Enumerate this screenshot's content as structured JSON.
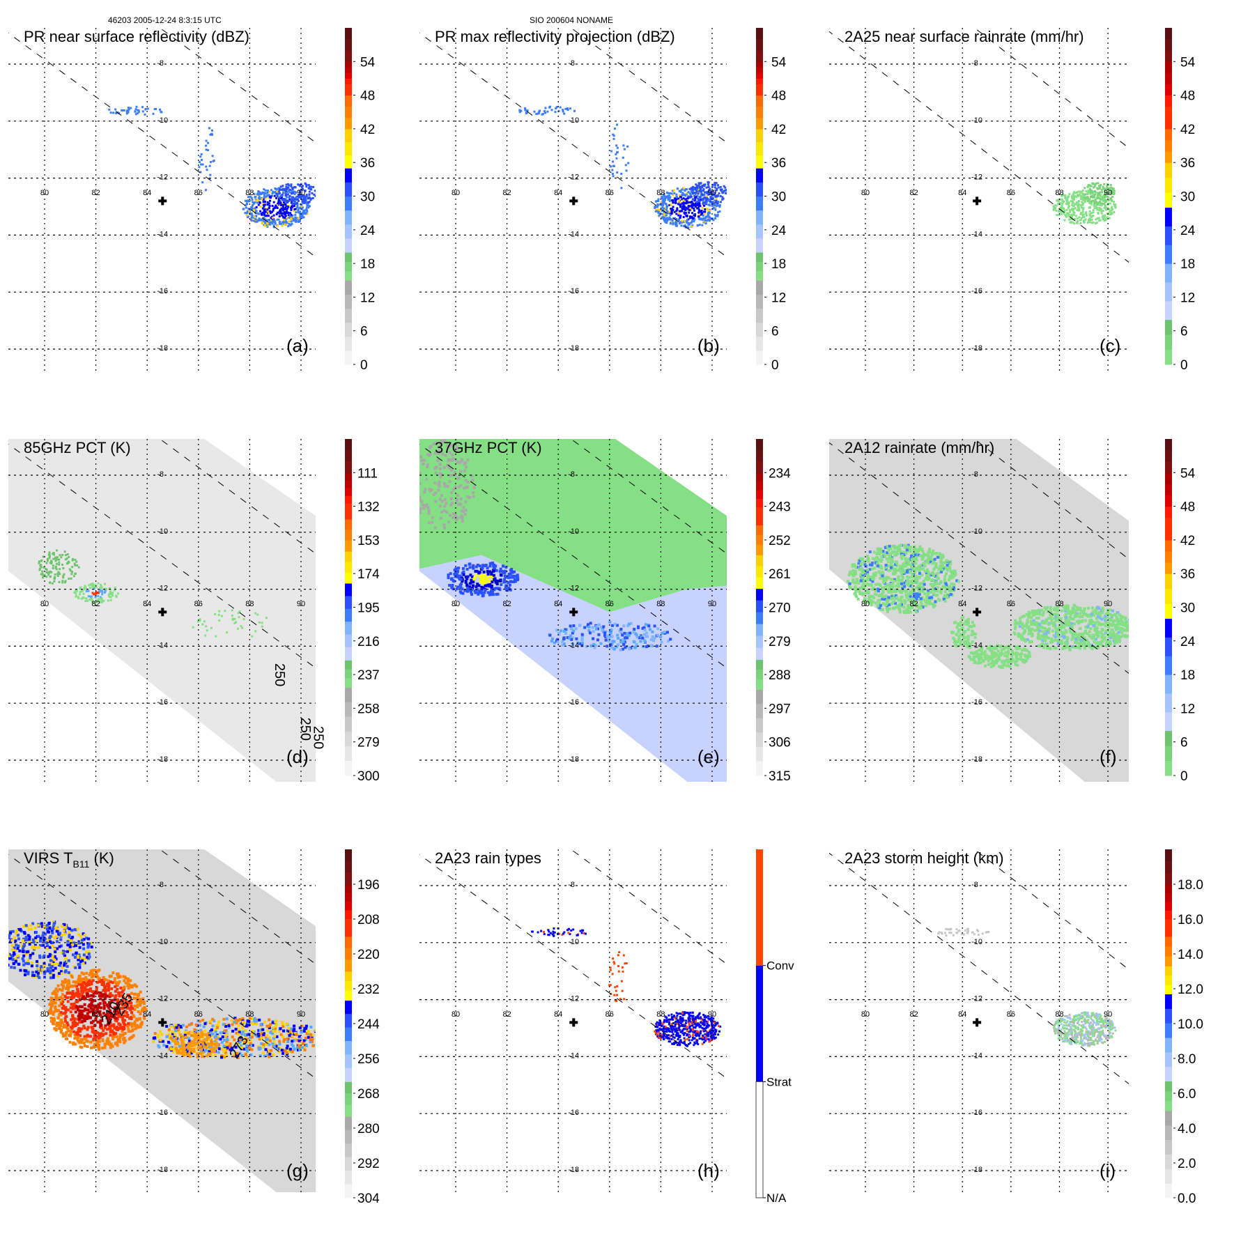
{
  "header": {
    "left": "46203 2005-12-24 8:3:15 UTC",
    "center": "SIO 200604 NONAME"
  },
  "chart_data": {
    "type": "heatmap",
    "map": {
      "lon_ticks": [
        80,
        82,
        84,
        86,
        88,
        90
      ],
      "lat_ticks": [
        -8,
        -10,
        -12,
        -14,
        -16,
        -18
      ],
      "lon_range": [
        78.5,
        91.3
      ],
      "lat_range": [
        -6.6,
        -19.3
      ],
      "storm_center": {
        "lon": 84.6,
        "lat": -12.8,
        "marker": "plus-icon"
      },
      "grid": "dotted"
    },
    "panels": [
      {
        "id": "a",
        "title": "PR near surface reflectivity (dBZ)",
        "panel_label": "(a)",
        "swath": "pr",
        "colorbar": {
          "min": 0,
          "max": 60,
          "ticks": [
            "0",
            "6",
            "12",
            "18",
            "24",
            "30",
            "36",
            "42",
            "48",
            "54"
          ],
          "bands": [
            [
              0,
              15,
              "gray"
            ],
            [
              15,
              20,
              "green"
            ],
            [
              20,
              35,
              "blue"
            ],
            [
              35,
              42,
              "yellow"
            ],
            [
              42,
              48,
              "orange"
            ],
            [
              48,
              54,
              "red"
            ],
            [
              54,
              60,
              "darkred"
            ]
          ]
        },
        "content": "sparse PR echoes along swath edge; rain cluster near 88-91E, 12-14S (30-42 dBZ)"
      },
      {
        "id": "b",
        "title": "PR max reflectivity projection (dBZ)",
        "panel_label": "(b)",
        "swath": "pr",
        "colorbar": {
          "min": 0,
          "max": 60,
          "ticks": [
            "0",
            "6",
            "12",
            "18",
            "24",
            "30",
            "36",
            "42",
            "48",
            "54"
          ],
          "bands": [
            [
              0,
              15,
              "gray"
            ],
            [
              15,
              20,
              "green"
            ],
            [
              20,
              35,
              "blue"
            ],
            [
              35,
              42,
              "yellow"
            ],
            [
              42,
              48,
              "orange"
            ],
            [
              48,
              54,
              "red"
            ],
            [
              54,
              60,
              "darkred"
            ]
          ]
        },
        "content": "contoured max reflectivity cluster near 88-91E"
      },
      {
        "id": "c",
        "title": "2A25 near surface rainrate (mm/hr)",
        "panel_label": "(c)",
        "swath": "pr",
        "colorbar": {
          "min": 0,
          "max": 60,
          "ticks": [
            "0",
            "6",
            "12",
            "18",
            "24",
            "30",
            "36",
            "42",
            "48",
            "54"
          ],
          "bands": [
            [
              0,
              8,
              "green"
            ],
            [
              8,
              28,
              "blue"
            ],
            [
              28,
              36,
              "yellow"
            ],
            [
              36,
              42,
              "orange"
            ],
            [
              42,
              54,
              "red"
            ],
            [
              54,
              60,
              "darkred"
            ]
          ]
        },
        "content": "light rain (green) cluster near 88-91E"
      },
      {
        "id": "d",
        "title": "85GHz PCT (K)",
        "panel_label": "(d)",
        "swath": "tmi",
        "colorbar": {
          "min": 90,
          "max": 300,
          "ticks": [
            "300",
            "279",
            "258",
            "237",
            "216",
            "195",
            "174",
            "153",
            "132",
            "111"
          ],
          "reversed": true,
          "bands": [
            [
              300,
              245,
              "gray"
            ],
            [
              245,
              228,
              "green"
            ],
            [
              228,
              180,
              "blue"
            ],
            [
              180,
              160,
              "yellow"
            ],
            [
              160,
              140,
              "orange"
            ],
            [
              140,
              111,
              "red"
            ],
            [
              111,
              90,
              "darkred"
            ]
          ]
        },
        "contour_labels": [
          "250",
          "250",
          "250"
        ],
        "content": "mostly gray background; depressed PCT near 80-82E, 11-12S"
      },
      {
        "id": "e",
        "title": "37GHz PCT (K)",
        "panel_label": "(e)",
        "swath": "tmi",
        "colorbar": {
          "min": 225,
          "max": 315,
          "ticks": [
            "315",
            "306",
            "297",
            "288",
            "279",
            "270",
            "261",
            "252",
            "243",
            "234"
          ],
          "reversed": true,
          "bands": [
            [
              315,
              292,
              "gray"
            ],
            [
              292,
              284,
              "green"
            ],
            [
              284,
              265,
              "blue"
            ],
            [
              265,
              256,
              "yellow"
            ],
            [
              256,
              248,
              "orange"
            ],
            [
              248,
              234,
              "red"
            ],
            [
              234,
              225,
              "darkred"
            ]
          ]
        },
        "content": "green background; blue band along southern edge, yellow/orange near 80-82E"
      },
      {
        "id": "f",
        "title": "2A12 rainrate (mm/hr)",
        "panel_label": "(f)",
        "swath": "tmi",
        "colorbar": {
          "min": 0,
          "max": 60,
          "ticks": [
            "0",
            "6",
            "12",
            "18",
            "24",
            "30",
            "36",
            "42",
            "48",
            "54"
          ],
          "bands": [
            [
              0,
              8,
              "green"
            ],
            [
              8,
              28,
              "blue"
            ],
            [
              28,
              36,
              "yellow"
            ],
            [
              36,
              42,
              "orange"
            ],
            [
              42,
              54,
              "red"
            ],
            [
              54,
              60,
              "darkred"
            ]
          ]
        },
        "content": "large green rain areas near 79-84E, 10-13S and 86-91E, 12-15S"
      },
      {
        "id": "g",
        "title": "VIRS T",
        "title_sub": "B11",
        "title_suffix": " (K)",
        "panel_label": "(g)",
        "swath": "virs",
        "colorbar": {
          "min": 184,
          "max": 304,
          "ticks": [
            "304",
            "292",
            "280",
            "268",
            "256",
            "244",
            "232",
            "220",
            "208",
            "196"
          ],
          "reversed": true,
          "bands": [
            [
              304,
              276,
              "gray"
            ],
            [
              276,
              264,
              "green"
            ],
            [
              264,
              236,
              "blue"
            ],
            [
              236,
              226,
              "yellow"
            ],
            [
              226,
              214,
              "orange"
            ],
            [
              214,
              196,
              "red"
            ],
            [
              196,
              184,
              "darkred"
            ]
          ]
        },
        "contour_labels": [
          "210",
          "235",
          "273"
        ],
        "content": "cold cloud tops (red/orange) near 81-83E, 11-13S; banded convection eastward"
      },
      {
        "id": "h",
        "title": "2A23 rain types",
        "panel_label": "(h)",
        "swath": "pr",
        "colorbar": {
          "categorical": true,
          "ticks": [
            "N/A",
            "Strat",
            "Conv"
          ],
          "bands": [
            [
              "N/A",
              "#ffffff"
            ],
            [
              "Strat",
              "#0000ff"
            ],
            [
              "Conv",
              "#ff4500"
            ]
          ]
        },
        "content": "stratiform (blue) dominant cluster near 88-91E with convective (orange) cells"
      },
      {
        "id": "i",
        "title": "2A23 storm height (km)",
        "panel_label": "(i)",
        "swath": "pr",
        "colorbar": {
          "min": 0,
          "max": 20,
          "ticks": [
            "0.0",
            "2.0",
            "4.0",
            "6.0",
            "8.0",
            "10.0",
            "12.0",
            "14.0",
            "16.0",
            "18.0"
          ],
          "bands": [
            [
              0,
              5,
              "gray"
            ],
            [
              5,
              6.7,
              "green"
            ],
            [
              6.7,
              11.7,
              "blue"
            ],
            [
              11.7,
              13.3,
              "yellow"
            ],
            [
              13.3,
              15,
              "orange"
            ],
            [
              15,
              18,
              "red"
            ],
            [
              18,
              20,
              "darkred"
            ]
          ]
        },
        "content": "storm heights mostly 4-8 km near 88-91E"
      }
    ]
  }
}
